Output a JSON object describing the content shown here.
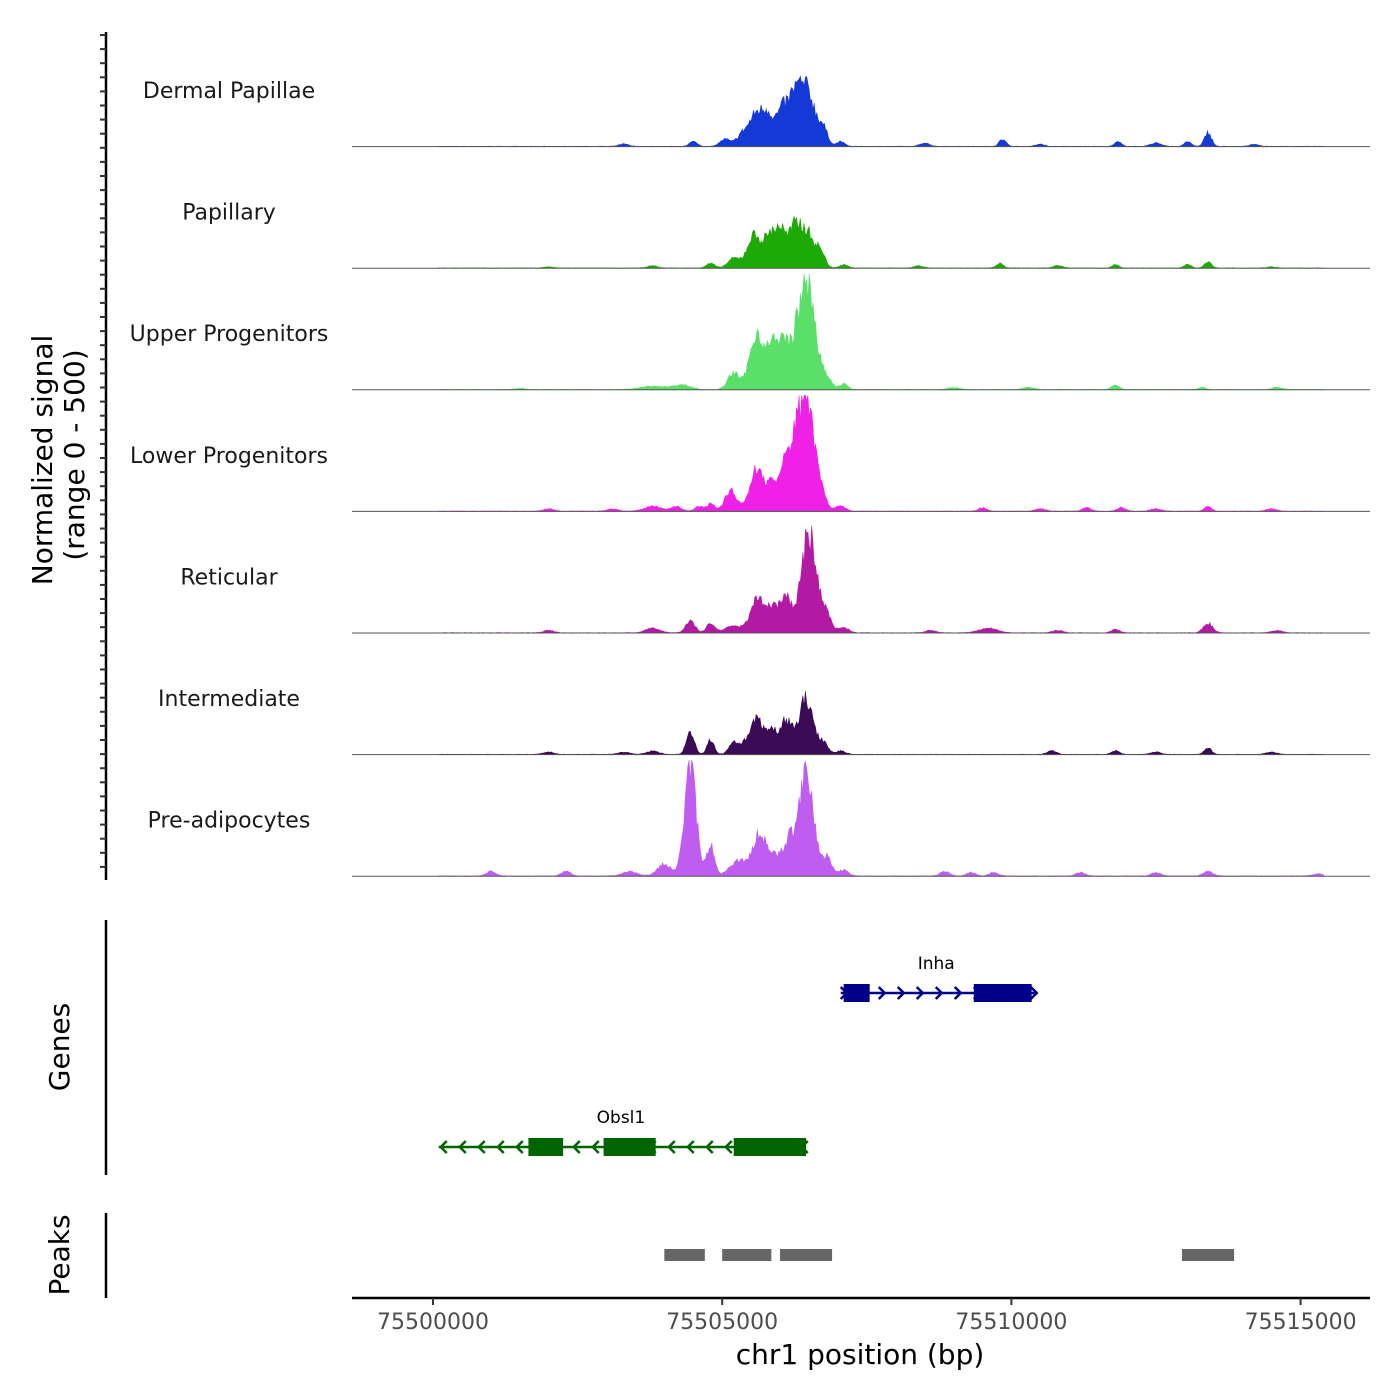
{
  "chart_data": {
    "type": "area",
    "title": "",
    "ylabel_line1": "Normalized signal",
    "ylabel_line2": "(range 0 - 500)",
    "xlabel": "chr1 position (bp)",
    "genes_label": "Genes",
    "peaks_label": "Peaks",
    "xlim": [
      75498600,
      75516200
    ],
    "ylim": [
      0,
      500
    ],
    "x_ticks": [
      75500000,
      75505000,
      75510000,
      75515000
    ],
    "x_tick_labels": [
      "75500000",
      "75505000",
      "75510000",
      "75515000"
    ],
    "signal_range": [
      75500100,
      75515400
    ],
    "series": [
      {
        "name": "Dermal Papillae",
        "color": "#1539d6",
        "peaks": [
          [
            75504500,
            0.04,
            70
          ],
          [
            75505050,
            0.06,
            90
          ],
          [
            75505350,
            0.1,
            100
          ],
          [
            75505600,
            0.28,
            120
          ],
          [
            75505800,
            0.22,
            90
          ],
          [
            75506050,
            0.32,
            110
          ],
          [
            75506250,
            0.24,
            90
          ],
          [
            75506450,
            0.5,
            150
          ],
          [
            75506750,
            0.12,
            80
          ],
          [
            75507050,
            0.04,
            70
          ],
          [
            75509850,
            0.06,
            60
          ],
          [
            75511850,
            0.04,
            60
          ],
          [
            75513050,
            0.04,
            60
          ],
          [
            75513400,
            0.12,
            60
          ],
          [
            75503300,
            0.02,
            80
          ],
          [
            75508500,
            0.03,
            80
          ],
          [
            75510500,
            0.02,
            70
          ],
          [
            75512500,
            0.03,
            90
          ],
          [
            75514200,
            0.02,
            70
          ]
        ]
      },
      {
        "name": "Papillary",
        "color": "#1eaa06",
        "peaks": [
          [
            75504800,
            0.04,
            70
          ],
          [
            75505200,
            0.08,
            100
          ],
          [
            75505550,
            0.28,
            120
          ],
          [
            75505800,
            0.2,
            90
          ],
          [
            75506000,
            0.34,
            110
          ],
          [
            75506250,
            0.26,
            90
          ],
          [
            75506450,
            0.32,
            130
          ],
          [
            75506700,
            0.12,
            80
          ],
          [
            75507100,
            0.03,
            70
          ],
          [
            75509800,
            0.04,
            60
          ],
          [
            75511800,
            0.03,
            60
          ],
          [
            75513050,
            0.03,
            60
          ],
          [
            75513400,
            0.05,
            60
          ],
          [
            75502000,
            0.01,
            80
          ],
          [
            75503800,
            0.02,
            80
          ],
          [
            75508400,
            0.02,
            80
          ],
          [
            75510800,
            0.02,
            80
          ],
          [
            75514500,
            0.01,
            80
          ]
        ]
      },
      {
        "name": "Upper Progenitors",
        "color": "#5adf68",
        "peaks": [
          [
            75503800,
            0.03,
            200
          ],
          [
            75504300,
            0.04,
            150
          ],
          [
            75505200,
            0.14,
            100
          ],
          [
            75505600,
            0.48,
            120
          ],
          [
            75505850,
            0.25,
            90
          ],
          [
            75506050,
            0.4,
            120
          ],
          [
            75506300,
            0.38,
            100
          ],
          [
            75506500,
            0.84,
            120
          ],
          [
            75506800,
            0.1,
            90
          ],
          [
            75507100,
            0.05,
            70
          ],
          [
            75511800,
            0.04,
            70
          ],
          [
            75513300,
            0.02,
            60
          ],
          [
            75509000,
            0.02,
            90
          ],
          [
            75510300,
            0.02,
            90
          ],
          [
            75501500,
            0.01,
            100
          ],
          [
            75514600,
            0.02,
            80
          ]
        ]
      },
      {
        "name": "Lower Progenitors",
        "color": "#f021e6",
        "peaks": [
          [
            75503800,
            0.04,
            150
          ],
          [
            75504200,
            0.04,
            90
          ],
          [
            75504600,
            0.04,
            70
          ],
          [
            75504800,
            0.06,
            70
          ],
          [
            75505150,
            0.18,
            100
          ],
          [
            75505600,
            0.36,
            120
          ],
          [
            75505850,
            0.18,
            90
          ],
          [
            75506100,
            0.38,
            120
          ],
          [
            75506300,
            0.5,
            110
          ],
          [
            75506480,
            0.85,
            110
          ],
          [
            75506700,
            0.2,
            90
          ],
          [
            75507050,
            0.05,
            80
          ],
          [
            75509500,
            0.03,
            70
          ],
          [
            75511300,
            0.03,
            70
          ],
          [
            75511900,
            0.03,
            70
          ],
          [
            75513400,
            0.04,
            60
          ],
          [
            75502000,
            0.02,
            90
          ],
          [
            75503100,
            0.02,
            90
          ],
          [
            75510500,
            0.02,
            90
          ],
          [
            75512500,
            0.02,
            90
          ],
          [
            75514500,
            0.02,
            90
          ]
        ]
      },
      {
        "name": "Reticular",
        "color": "#b21aa4",
        "peaks": [
          [
            75503800,
            0.04,
            120
          ],
          [
            75504450,
            0.1,
            80
          ],
          [
            75504800,
            0.08,
            70
          ],
          [
            75505200,
            0.06,
            150
          ],
          [
            75505600,
            0.3,
            110
          ],
          [
            75505850,
            0.2,
            90
          ],
          [
            75506100,
            0.3,
            110
          ],
          [
            75506500,
            0.85,
            130
          ],
          [
            75506800,
            0.15,
            90
          ],
          [
            75507100,
            0.05,
            80
          ],
          [
            75509600,
            0.04,
            150
          ],
          [
            75511800,
            0.03,
            70
          ],
          [
            75513400,
            0.08,
            80
          ],
          [
            75502000,
            0.02,
            90
          ],
          [
            75508600,
            0.02,
            90
          ],
          [
            75510800,
            0.02,
            90
          ],
          [
            75514600,
            0.02,
            90
          ]
        ]
      },
      {
        "name": "Intermediate",
        "color": "#3b0a54",
        "peaks": [
          [
            75503300,
            0.02,
            100
          ],
          [
            75503800,
            0.03,
            100
          ],
          [
            75504450,
            0.18,
            70
          ],
          [
            75504800,
            0.12,
            60
          ],
          [
            75505200,
            0.1,
            80
          ],
          [
            75505400,
            0.08,
            80
          ],
          [
            75505600,
            0.3,
            100
          ],
          [
            75505850,
            0.18,
            90
          ],
          [
            75506100,
            0.28,
            110
          ],
          [
            75506450,
            0.48,
            120
          ],
          [
            75506750,
            0.1,
            80
          ],
          [
            75507050,
            0.03,
            80
          ],
          [
            75510700,
            0.03,
            80
          ],
          [
            75511800,
            0.03,
            70
          ],
          [
            75513400,
            0.06,
            60
          ],
          [
            75502000,
            0.02,
            90
          ],
          [
            75512500,
            0.02,
            90
          ],
          [
            75514500,
            0.02,
            90
          ]
        ]
      },
      {
        "name": "Pre-adipocytes",
        "color": "#c05df1",
        "peaks": [
          [
            75501000,
            0.04,
            80
          ],
          [
            75502300,
            0.04,
            80
          ],
          [
            75503400,
            0.04,
            120
          ],
          [
            75504000,
            0.1,
            120
          ],
          [
            75504450,
            0.92,
            100
          ],
          [
            75504800,
            0.25,
            70
          ],
          [
            75505300,
            0.14,
            150
          ],
          [
            75505650,
            0.36,
            110
          ],
          [
            75505900,
            0.15,
            90
          ],
          [
            75506150,
            0.3,
            110
          ],
          [
            75506450,
            0.93,
            120
          ],
          [
            75506800,
            0.16,
            90
          ],
          [
            75507100,
            0.05,
            80
          ],
          [
            75508850,
            0.04,
            80
          ],
          [
            75509300,
            0.03,
            80
          ],
          [
            75509700,
            0.03,
            80
          ],
          [
            75511200,
            0.03,
            80
          ],
          [
            75512500,
            0.03,
            80
          ],
          [
            75513400,
            0.04,
            80
          ],
          [
            75515300,
            0.02,
            80
          ]
        ]
      }
    ],
    "genes": [
      {
        "name": "Inha",
        "strand": "+",
        "start": 75507050,
        "end": 75510400,
        "color": "#00008b",
        "exons": [
          [
            75507100,
            75507550
          ],
          [
            75509350,
            75510350
          ]
        ]
      },
      {
        "name": "Obsl1",
        "strand": "-",
        "start": 75500100,
        "end": 75506450,
        "color": "#006400",
        "exons": [
          [
            75501650,
            75502250
          ],
          [
            75502950,
            75503850
          ],
          [
            75505200,
            75506450
          ]
        ]
      }
    ],
    "peak_regions": [
      [
        75504000,
        75504700
      ],
      [
        75505000,
        75505850
      ],
      [
        75506000,
        75506900
      ],
      [
        75512950,
        75513850
      ]
    ],
    "peak_color": "#666666"
  }
}
